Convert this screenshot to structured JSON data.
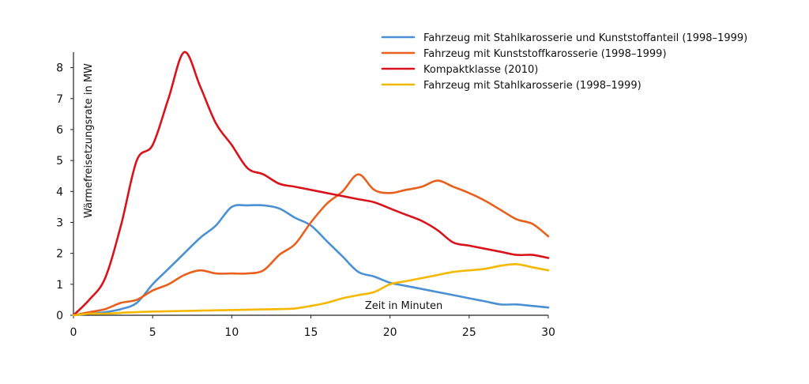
{
  "chart_data": {
    "type": "line",
    "title": "",
    "xlabel": "Zeit in Minuten",
    "ylabel": "Wärmefreisetzungsrate in MW",
    "xlim": [
      0,
      30
    ],
    "ylim": [
      0,
      8.5
    ],
    "xticks": [
      0,
      5,
      10,
      15,
      20,
      25,
      30
    ],
    "yticks": [
      0,
      1,
      2,
      3,
      4,
      5,
      6,
      7,
      8
    ],
    "grid": false,
    "legend_position": "top-right",
    "series": [
      {
        "name": "Fahrzeug mit Stahlkarosserie und Kunststoffanteil (1998–1999)",
        "color": "#4a90d2",
        "x": [
          0,
          1,
          2,
          3,
          4,
          5,
          6,
          7,
          8,
          9,
          10,
          11,
          12,
          13,
          14,
          15,
          16,
          17,
          18,
          19,
          20,
          21,
          22,
          23,
          24,
          25,
          26,
          27,
          28,
          29,
          30
        ],
        "y": [
          0,
          0.05,
          0.1,
          0.2,
          0.4,
          1.0,
          1.5,
          2.0,
          2.5,
          2.9,
          3.5,
          3.55,
          3.55,
          3.45,
          3.15,
          2.9,
          2.4,
          1.9,
          1.4,
          1.25,
          1.05,
          0.95,
          0.85,
          0.75,
          0.65,
          0.55,
          0.45,
          0.35,
          0.35,
          0.3,
          0.25
        ]
      },
      {
        "name": "Fahrzeug mit Kunststoffkarosserie (1998–1999)",
        "color": "#e8601c",
        "x": [
          0,
          1,
          2,
          3,
          4,
          5,
          6,
          7,
          8,
          9,
          10,
          11,
          12,
          13,
          14,
          15,
          16,
          17,
          18,
          19,
          20,
          21,
          22,
          23,
          24,
          25,
          26,
          27,
          28,
          29,
          30
        ],
        "y": [
          0,
          0.1,
          0.2,
          0.4,
          0.5,
          0.8,
          1.0,
          1.3,
          1.45,
          1.35,
          1.35,
          1.35,
          1.45,
          1.95,
          2.3,
          3.0,
          3.6,
          4.0,
          4.55,
          4.05,
          3.95,
          4.05,
          4.15,
          4.35,
          4.15,
          3.95,
          3.7,
          3.4,
          3.1,
          2.95,
          2.55
        ]
      },
      {
        "name": "Kompaktklasse (2010)",
        "color": "#d9131b",
        "x": [
          0,
          1,
          2,
          3,
          4,
          5,
          6,
          7,
          8,
          9,
          10,
          11,
          12,
          13,
          14,
          15,
          16,
          17,
          18,
          19,
          20,
          21,
          22,
          23,
          24,
          25,
          26,
          27,
          28,
          29,
          30
        ],
        "y": [
          0,
          0.5,
          1.2,
          2.9,
          5.0,
          5.5,
          7.0,
          8.5,
          7.4,
          6.2,
          5.5,
          4.75,
          4.55,
          4.25,
          4.15,
          4.05,
          3.95,
          3.85,
          3.75,
          3.65,
          3.45,
          3.25,
          3.05,
          2.75,
          2.35,
          2.25,
          2.15,
          2.05,
          1.95,
          1.95,
          1.85
        ]
      },
      {
        "name": "Fahrzeug mit Stahlkarosserie (1998–1999)",
        "color": "#f5b800",
        "x": [
          0,
          1,
          2,
          3,
          4,
          5,
          6,
          7,
          8,
          9,
          10,
          11,
          12,
          13,
          14,
          15,
          16,
          17,
          18,
          19,
          20,
          21,
          22,
          23,
          24,
          25,
          26,
          27,
          28,
          29,
          30
        ],
        "y": [
          0,
          0.05,
          0.05,
          0.08,
          0.1,
          0.12,
          0.13,
          0.14,
          0.15,
          0.16,
          0.17,
          0.18,
          0.19,
          0.2,
          0.22,
          0.3,
          0.4,
          0.55,
          0.65,
          0.75,
          1.0,
          1.1,
          1.2,
          1.3,
          1.4,
          1.45,
          1.5,
          1.6,
          1.65,
          1.55,
          1.45
        ]
      }
    ]
  }
}
